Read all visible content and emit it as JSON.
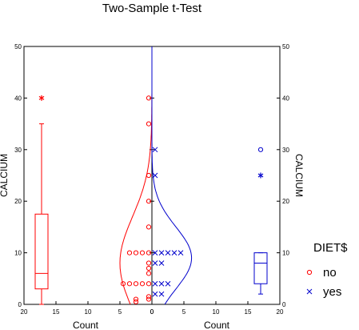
{
  "chart_data": {
    "type": "scatter",
    "title": "Two-Sample t-Test",
    "xlabel_left": "Count",
    "xlabel_right": "Count",
    "ylabel_left": "CALCIUM",
    "ylabel_right": "CALCIUM",
    "ylim": [
      0,
      50
    ],
    "yticks": [
      "0",
      "10",
      "20",
      "30",
      "40",
      "50"
    ],
    "xlim_left": [
      20,
      0
    ],
    "xlim_right": [
      0,
      20
    ],
    "xticks_left": [
      "20",
      "15",
      "10",
      "5",
      "0"
    ],
    "xticks_right": [
      "0",
      "5",
      "10",
      "15",
      "20"
    ],
    "grid": false,
    "legend": {
      "title": "DIET$",
      "placement": "right",
      "entries": [
        {
          "label": "no",
          "marker": "circle",
          "color": "#ff0000"
        },
        {
          "label": "yes",
          "marker": "x",
          "color": "#0000cc"
        }
      ]
    },
    "series": [
      {
        "name": "no",
        "color": "#ff0000",
        "marker": "circle",
        "points": [
          {
            "value": 0.5,
            "count": 3
          },
          {
            "value": 1,
            "count": 1
          },
          {
            "value": 1,
            "count": 3
          },
          {
            "value": 1.5,
            "count": 1
          },
          {
            "value": 4,
            "count": 1
          },
          {
            "value": 4,
            "count": 2
          },
          {
            "value": 4,
            "count": 3
          },
          {
            "value": 4,
            "count": 4
          },
          {
            "value": 4,
            "count": 5
          },
          {
            "value": 6,
            "count": 1
          },
          {
            "value": 7,
            "count": 1
          },
          {
            "value": 8,
            "count": 1
          },
          {
            "value": 10,
            "count": 1
          },
          {
            "value": 10,
            "count": 2
          },
          {
            "value": 10,
            "count": 3
          },
          {
            "value": 10,
            "count": 4
          },
          {
            "value": 15,
            "count": 1
          },
          {
            "value": 20,
            "count": 1
          },
          {
            "value": 25,
            "count": 1
          },
          {
            "value": 35,
            "count": 1
          },
          {
            "value": 40,
            "count": 1
          }
        ],
        "boxplot": {
          "whisker_low": 0,
          "q1": 3,
          "median": 6,
          "q3": 17.5,
          "whisker_high": 35,
          "outliers": [
            {
              "value": 40,
              "marker": "asterisk"
            }
          ]
        },
        "density": {
          "mean": 8,
          "sd": 9,
          "peak_count": 5
        }
      },
      {
        "name": "yes",
        "color": "#0000cc",
        "marker": "x",
        "points": [
          {
            "value": 2,
            "count": 1
          },
          {
            "value": 2,
            "count": 2
          },
          {
            "value": 4,
            "count": 1
          },
          {
            "value": 4,
            "count": 2
          },
          {
            "value": 4,
            "count": 3
          },
          {
            "value": 8,
            "count": 1
          },
          {
            "value": 8,
            "count": 2
          },
          {
            "value": 10,
            "count": 1
          },
          {
            "value": 10,
            "count": 2
          },
          {
            "value": 10,
            "count": 3
          },
          {
            "value": 10,
            "count": 4
          },
          {
            "value": 10,
            "count": 5
          },
          {
            "value": 25,
            "count": 1
          },
          {
            "value": 30,
            "count": 1
          }
        ],
        "boxplot": {
          "whisker_low": 2,
          "q1": 4,
          "median": 8,
          "q3": 10,
          "whisker_high": 10,
          "outliers": [
            {
              "value": 25,
              "marker": "asterisk"
            },
            {
              "value": 30,
              "marker": "circle"
            }
          ]
        },
        "density": {
          "mean": 9,
          "sd": 6,
          "peak_count": 6.2
        }
      }
    ]
  }
}
